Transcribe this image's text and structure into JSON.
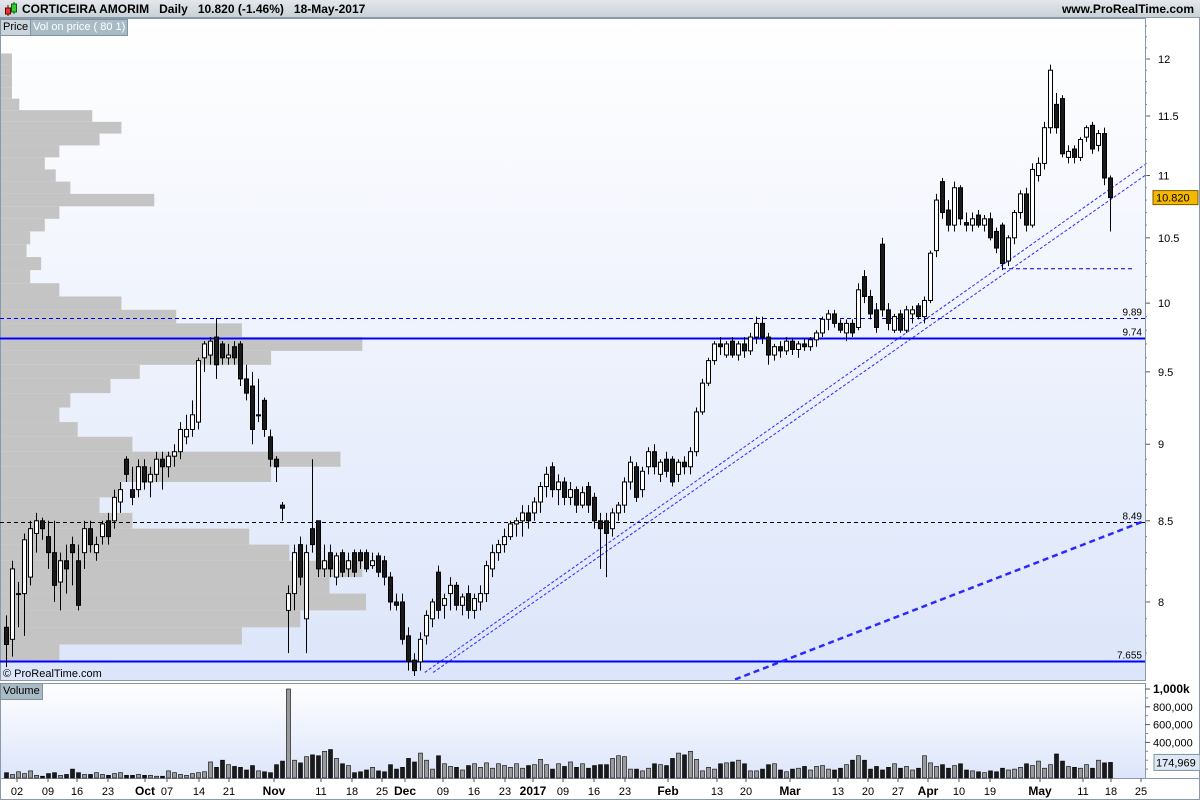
{
  "header": {
    "symbol": "CORTICEIRA AMORIM",
    "period": "Daily",
    "last": "10.820 (-1.46%)",
    "date": "18-May-2017",
    "site": "www.ProRealTime.com"
  },
  "tabs": {
    "price": "Price",
    "vol_on_price": "Vol on price ( 80 1)",
    "volume": "Volume"
  },
  "watermark": "© ProRealTime.com",
  "colors": {
    "up": "#ffffff",
    "down": "#1a1a1a",
    "lines": "#0000ff",
    "profile": "#c4c4c4",
    "last_price_box": "#f5b800",
    "panel_top": "#ffffff",
    "panel_bottom": "#dce5fa"
  },
  "chart_data": {
    "type": "candlestick",
    "y_scale": "log",
    "ylim": [
      7.54,
      12.35
    ],
    "price_ticks": [
      "12",
      "11.5",
      "11",
      "10.5",
      "10",
      "9.5",
      "9",
      "8.5",
      "8"
    ],
    "x_tick_labels": [
      "02",
      "09",
      "16",
      "23",
      "Oct",
      "07",
      "14",
      "21",
      "Nov",
      "11",
      "18",
      "25",
      "Dec",
      "09",
      "16",
      "23",
      "2017",
      "09",
      "16",
      "23",
      "Feb",
      "13",
      "20",
      "Mar",
      "13",
      "20",
      "27",
      "Apr",
      "10",
      "19",
      "May",
      "11",
      "18",
      "25"
    ],
    "x_tick_bold": [
      "Oct",
      "Nov",
      "Dec",
      "2017",
      "Feb",
      "Mar",
      "Apr",
      "May"
    ],
    "last_price": "10.820",
    "candles_ohlc": [
      [
        7.85,
        7.92,
        7.62,
        7.75
      ],
      [
        7.78,
        8.25,
        7.68,
        8.2
      ],
      [
        8.05,
        8.12,
        7.85,
        8.05
      ],
      [
        8.05,
        8.42,
        7.8,
        8.38
      ],
      [
        8.15,
        8.5,
        8.1,
        8.45
      ],
      [
        8.42,
        8.55,
        8.3,
        8.5
      ],
      [
        8.5,
        8.52,
        8.38,
        8.45
      ],
      [
        8.4,
        8.5,
        8.2,
        8.3
      ],
      [
        8.3,
        8.5,
        8.0,
        8.1
      ],
      [
        8.12,
        8.3,
        7.95,
        8.25
      ],
      [
        8.25,
        8.35,
        8.05,
        8.2
      ],
      [
        8.35,
        8.4,
        8.1,
        8.3
      ],
      [
        8.25,
        8.35,
        7.95,
        7.98
      ],
      [
        8.3,
        8.5,
        8.2,
        8.45
      ],
      [
        8.45,
        8.5,
        8.3,
        8.35
      ],
      [
        8.3,
        8.4,
        8.25,
        8.35
      ],
      [
        8.4,
        8.5,
        8.35,
        8.48
      ],
      [
        8.5,
        8.55,
        8.35,
        8.4
      ],
      [
        8.5,
        8.7,
        8.45,
        8.65
      ],
      [
        8.62,
        8.75,
        8.55,
        8.7
      ],
      [
        8.9,
        8.92,
        8.75,
        8.8
      ],
      [
        8.7,
        8.85,
        8.6,
        8.65
      ],
      [
        8.7,
        8.9,
        8.65,
        8.85
      ],
      [
        8.85,
        8.9,
        8.7,
        8.75
      ],
      [
        8.75,
        8.85,
        8.65,
        8.8
      ],
      [
        8.8,
        8.95,
        8.75,
        8.9
      ],
      [
        8.9,
        8.95,
        8.7,
        8.85
      ],
      [
        8.85,
        8.95,
        8.78,
        8.92
      ],
      [
        8.92,
        9.0,
        8.85,
        8.95
      ],
      [
        8.95,
        9.15,
        8.9,
        9.1
      ],
      [
        9.05,
        9.2,
        9.0,
        9.1
      ],
      [
        9.1,
        9.3,
        9.05,
        9.2
      ],
      [
        9.15,
        9.6,
        9.1,
        9.58
      ],
      [
        9.6,
        9.72,
        9.5,
        9.7
      ],
      [
        9.62,
        9.75,
        9.55,
        9.72
      ],
      [
        9.75,
        9.89,
        9.45,
        9.55
      ],
      [
        9.7,
        9.72,
        9.55,
        9.6
      ],
      [
        9.6,
        9.7,
        9.55,
        9.62
      ],
      [
        9.68,
        9.72,
        9.55,
        9.6
      ],
      [
        9.7,
        9.72,
        9.4,
        9.45
      ],
      [
        9.45,
        9.55,
        9.3,
        9.35
      ],
      [
        9.4,
        9.5,
        9.0,
        9.1
      ],
      [
        9.2,
        9.45,
        9.15,
        9.2
      ],
      [
        9.3,
        9.32,
        9.05,
        9.1
      ],
      [
        9.05,
        9.1,
        8.85,
        8.9
      ],
      [
        8.9,
        8.92,
        8.75,
        8.85
      ],
      [
        8.6,
        8.62,
        8.5,
        8.58
      ],
      [
        7.95,
        8.1,
        7.7,
        8.05
      ],
      [
        8.05,
        8.35,
        7.95,
        8.3
      ],
      [
        8.35,
        8.4,
        8.1,
        8.15
      ],
      [
        7.9,
        8.35,
        7.7,
        8.3
      ],
      [
        8.45,
        8.9,
        8.3,
        8.35
      ],
      [
        8.5,
        8.5,
        8.15,
        8.2
      ],
      [
        8.2,
        8.35,
        8.15,
        8.25
      ],
      [
        8.3,
        8.35,
        8.15,
        8.2
      ],
      [
        8.15,
        8.3,
        8.1,
        8.28
      ],
      [
        8.3,
        8.32,
        8.15,
        8.18
      ],
      [
        8.2,
        8.3,
        8.15,
        8.25
      ],
      [
        8.3,
        8.32,
        8.15,
        8.18
      ],
      [
        8.3,
        8.32,
        8.2,
        8.25
      ],
      [
        8.3,
        8.32,
        8.18,
        8.2
      ],
      [
        8.22,
        8.3,
        8.2,
        8.25
      ],
      [
        8.28,
        8.3,
        8.15,
        8.18
      ],
      [
        8.25,
        8.28,
        8.1,
        8.15
      ],
      [
        8.15,
        8.18,
        7.95,
        8.0
      ],
      [
        8.0,
        8.05,
        7.95,
        7.98
      ],
      [
        8.0,
        8.05,
        7.75,
        7.78
      ],
      [
        7.8,
        7.85,
        7.6,
        7.65
      ],
      [
        7.66,
        7.7,
        7.57,
        7.6
      ],
      [
        7.65,
        7.82,
        7.6,
        7.78
      ],
      [
        7.8,
        7.95,
        7.75,
        7.92
      ],
      [
        7.9,
        8.02,
        7.85,
        8.0
      ],
      [
        8.18,
        8.22,
        7.9,
        7.95
      ],
      [
        7.98,
        8.05,
        7.9,
        8.02
      ],
      [
        8.05,
        8.15,
        7.95,
        8.1
      ],
      [
        8.1,
        8.12,
        7.95,
        7.98
      ],
      [
        7.98,
        8.05,
        7.92,
        8.03
      ],
      [
        8.05,
        8.1,
        7.9,
        7.95
      ],
      [
        7.95,
        8.05,
        7.9,
        8.02
      ],
      [
        8.0,
        8.1,
        7.95,
        8.05
      ],
      [
        8.05,
        8.25,
        8.0,
        8.22
      ],
      [
        8.2,
        8.35,
        8.15,
        8.3
      ],
      [
        8.3,
        8.38,
        8.25,
        8.35
      ],
      [
        8.35,
        8.45,
        8.3,
        8.4
      ],
      [
        8.4,
        8.5,
        8.38,
        8.48
      ],
      [
        8.48,
        8.52,
        8.4,
        8.5
      ],
      [
        8.5,
        8.6,
        8.4,
        8.55
      ],
      [
        8.55,
        8.6,
        8.45,
        8.5
      ],
      [
        8.55,
        8.65,
        8.5,
        8.62
      ],
      [
        8.62,
        8.75,
        8.55,
        8.72
      ],
      [
        8.72,
        8.85,
        8.65,
        8.8
      ],
      [
        8.85,
        8.88,
        8.65,
        8.7
      ],
      [
        8.7,
        8.8,
        8.6,
        8.75
      ],
      [
        8.75,
        8.78,
        8.6,
        8.65
      ],
      [
        8.65,
        8.75,
        8.6,
        8.7
      ],
      [
        8.7,
        8.72,
        8.55,
        8.6
      ],
      [
        8.6,
        8.72,
        8.58,
        8.68
      ],
      [
        8.72,
        8.75,
        8.55,
        8.6
      ],
      [
        8.65,
        8.68,
        8.45,
        8.5
      ],
      [
        8.5,
        8.55,
        8.2,
        8.45
      ],
      [
        8.5,
        8.55,
        8.15,
        8.42
      ],
      [
        8.45,
        8.58,
        8.4,
        8.55
      ],
      [
        8.55,
        8.62,
        8.5,
        8.6
      ],
      [
        8.6,
        8.78,
        8.55,
        8.75
      ],
      [
        8.75,
        8.92,
        8.7,
        8.88
      ],
      [
        8.85,
        8.88,
        8.62,
        8.65
      ],
      [
        8.7,
        8.85,
        8.65,
        8.82
      ],
      [
        8.85,
        8.98,
        8.8,
        8.95
      ],
      [
        8.95,
        9.0,
        8.8,
        8.85
      ],
      [
        8.8,
        8.9,
        8.75,
        8.88
      ],
      [
        8.9,
        8.95,
        8.78,
        8.82
      ],
      [
        8.9,
        8.92,
        8.72,
        8.75
      ],
      [
        8.8,
        8.9,
        8.75,
        8.88
      ],
      [
        8.88,
        8.92,
        8.8,
        8.85
      ],
      [
        8.85,
        8.98,
        8.8,
        8.95
      ],
      [
        8.95,
        9.25,
        8.92,
        9.22
      ],
      [
        9.22,
        9.45,
        9.2,
        9.42
      ],
      [
        9.42,
        9.6,
        9.4,
        9.58
      ],
      [
        9.58,
        9.72,
        9.55,
        9.7
      ],
      [
        9.7,
        9.75,
        9.62,
        9.68
      ],
      [
        9.62,
        9.72,
        9.6,
        9.7
      ],
      [
        9.72,
        9.75,
        9.6,
        9.62
      ],
      [
        9.62,
        9.72,
        9.58,
        9.7
      ],
      [
        9.7,
        9.75,
        9.6,
        9.65
      ],
      [
        9.65,
        9.78,
        9.62,
        9.75
      ],
      [
        9.75,
        9.9,
        9.7,
        9.85
      ],
      [
        9.85,
        9.9,
        9.7,
        9.75
      ],
      [
        9.75,
        9.78,
        9.55,
        9.62
      ],
      [
        9.62,
        9.7,
        9.58,
        9.68
      ],
      [
        9.68,
        9.72,
        9.6,
        9.65
      ],
      [
        9.65,
        9.75,
        9.62,
        9.72
      ],
      [
        9.72,
        9.74,
        9.62,
        9.66
      ],
      [
        9.66,
        9.72,
        9.6,
        9.7
      ],
      [
        9.7,
        9.74,
        9.65,
        9.68
      ],
      [
        9.68,
        9.75,
        9.65,
        9.73
      ],
      [
        9.73,
        9.8,
        9.68,
        9.78
      ],
      [
        9.78,
        9.9,
        9.75,
        9.88
      ],
      [
        9.88,
        9.95,
        9.8,
        9.92
      ],
      [
        9.92,
        9.95,
        9.82,
        9.85
      ],
      [
        9.85,
        9.88,
        9.78,
        9.8
      ],
      [
        9.78,
        9.88,
        9.72,
        9.85
      ],
      [
        9.85,
        9.88,
        9.75,
        9.78
      ],
      [
        9.82,
        10.15,
        9.8,
        10.1
      ],
      [
        10.2,
        10.25,
        10.0,
        10.05
      ],
      [
        10.05,
        10.1,
        9.88,
        9.92
      ],
      [
        9.95,
        10.0,
        9.78,
        9.82
      ],
      [
        10.45,
        10.5,
        9.9,
        9.95
      ],
      [
        9.95,
        10.0,
        9.8,
        9.85
      ],
      [
        9.8,
        9.92,
        9.78,
        9.9
      ],
      [
        9.92,
        9.95,
        9.78,
        9.8
      ],
      [
        9.8,
        9.98,
        9.78,
        9.95
      ],
      [
        9.92,
        9.98,
        9.85,
        9.95
      ],
      [
        9.98,
        10.0,
        9.88,
        9.9
      ],
      [
        9.9,
        10.05,
        9.85,
        10.02
      ],
      [
        10.02,
        10.4,
        10.0,
        10.38
      ],
      [
        10.4,
        10.85,
        10.35,
        10.8
      ],
      [
        10.95,
        10.98,
        10.65,
        10.7
      ],
      [
        10.72,
        10.8,
        10.55,
        10.6
      ],
      [
        10.6,
        10.95,
        10.55,
        10.9
      ],
      [
        10.9,
        10.92,
        10.6,
        10.65
      ],
      [
        10.62,
        10.7,
        10.55,
        10.6
      ],
      [
        10.6,
        10.7,
        10.55,
        10.65
      ],
      [
        10.68,
        10.72,
        10.58,
        10.6
      ],
      [
        10.6,
        10.68,
        10.55,
        10.65
      ],
      [
        10.65,
        10.7,
        10.48,
        10.5
      ],
      [
        10.55,
        10.58,
        10.38,
        10.42
      ],
      [
        10.6,
        10.62,
        10.25,
        10.3
      ],
      [
        10.32,
        10.52,
        10.28,
        10.5
      ],
      [
        10.5,
        10.72,
        10.45,
        10.7
      ],
      [
        10.7,
        10.88,
        10.65,
        10.85
      ],
      [
        10.85,
        10.9,
        10.55,
        10.6
      ],
      [
        10.6,
        11.1,
        10.58,
        11.05
      ],
      [
        11.0,
        11.15,
        10.95,
        11.1
      ],
      [
        11.1,
        11.45,
        11.05,
        11.4
      ],
      [
        11.4,
        11.95,
        11.35,
        11.9
      ],
      [
        11.6,
        11.7,
        11.35,
        11.4
      ],
      [
        11.65,
        11.68,
        11.15,
        11.18
      ],
      [
        11.15,
        11.25,
        11.1,
        11.2
      ],
      [
        11.22,
        11.25,
        11.1,
        11.15
      ],
      [
        11.15,
        11.32,
        11.12,
        11.3
      ],
      [
        11.32,
        11.42,
        11.28,
        11.4
      ],
      [
        11.42,
        11.45,
        11.18,
        11.22
      ],
      [
        11.25,
        11.38,
        11.2,
        11.35
      ],
      [
        11.35,
        11.4,
        10.92,
        10.98
      ],
      [
        10.98,
        11.0,
        10.55,
        10.82
      ]
    ],
    "volume_k": [
      60,
      40,
      70,
      50,
      80,
      30,
      20,
      50,
      60,
      30,
      40,
      100,
      60,
      40,
      40,
      60,
      40,
      30,
      50,
      60,
      30,
      30,
      40,
      30,
      30,
      20,
      20,
      80,
      60,
      40,
      30,
      50,
      60,
      70,
      180,
      120,
      200,
      150,
      130,
      120,
      90,
      140,
      80,
      70,
      60,
      150,
      190,
      1000,
      200,
      170,
      240,
      260,
      250,
      300,
      320,
      220,
      160,
      140,
      60,
      70,
      90,
      120,
      80,
      70,
      150,
      100,
      120,
      220,
      180,
      280,
      200,
      100,
      250,
      160,
      130,
      120,
      90,
      140,
      160,
      120,
      170,
      110,
      160,
      140,
      120,
      160,
      110,
      140,
      150,
      210,
      150,
      100,
      160,
      130,
      180,
      120,
      160,
      110,
      140,
      150,
      150,
      220,
      250,
      240,
      100,
      100,
      80,
      110,
      160,
      150,
      140,
      220,
      280,
      260,
      300,
      210,
      80,
      120,
      100,
      160,
      170,
      180,
      200,
      160,
      80,
      80,
      100,
      150,
      160,
      90,
      70,
      100,
      110,
      130,
      90,
      130,
      140,
      100,
      90,
      110,
      150,
      200,
      250,
      200,
      100,
      130,
      90,
      120,
      160,
      110,
      130,
      90,
      110,
      250,
      170,
      130,
      150,
      110,
      140,
      160,
      90,
      80,
      70,
      60,
      80,
      70,
      110,
      90,
      100,
      120,
      160,
      140,
      190,
      110,
      150,
      270,
      190,
      130,
      120,
      110,
      150,
      110,
      200,
      170,
      174.969
    ],
    "volume_ticks": [
      "1,000k",
      "800,000",
      "600,000",
      "400,000"
    ],
    "last_volume": "174,969",
    "volume_on_price": {
      "prices": [
        12.0,
        11.9,
        11.8,
        11.7,
        11.6,
        11.5,
        11.4,
        11.3,
        11.2,
        11.1,
        11.0,
        10.9,
        10.8,
        10.7,
        10.6,
        10.5,
        10.4,
        10.3,
        10.2,
        10.1,
        10.0,
        9.9,
        9.8,
        9.7,
        9.6,
        9.5,
        9.4,
        9.3,
        9.2,
        9.1,
        9.0,
        8.9,
        8.8,
        8.7,
        8.6,
        8.5,
        8.4,
        8.3,
        8.2,
        8.1,
        8.0,
        7.9,
        7.8,
        7.7
      ],
      "relative_volume_pct": [
        3,
        3,
        3,
        3,
        5,
        25,
        33,
        27,
        16,
        12,
        15,
        19,
        42,
        16,
        12,
        8,
        7,
        11,
        8,
        16,
        33,
        48,
        66,
        99,
        74,
        38,
        30,
        19,
        16,
        21,
        36,
        93,
        74,
        33,
        27,
        36,
        68,
        79,
        99,
        90,
        100,
        82,
        66,
        16
      ]
    },
    "horizontal_lines": [
      {
        "price": 9.89,
        "label": "9.89",
        "style": "dashed",
        "color": "#0000ff"
      },
      {
        "price": 9.74,
        "label": "9.74",
        "style": "solid",
        "color": "#0000ff"
      },
      {
        "price": 8.49,
        "label": "8.49",
        "style": "dashed",
        "color": "#000000"
      },
      {
        "price": 7.655,
        "label": "7.655",
        "style": "solid",
        "color": "#0000ff"
      }
    ],
    "segment_lines": [
      {
        "from": [
          166,
          10.26
        ],
        "to": [
          188,
          10.26
        ],
        "style": "dashed"
      }
    ],
    "trend_lines": [
      {
        "from": [
          69.8,
          7.59
        ],
        "to": [
          189.8,
          11.09
        ],
        "style": "dotted"
      },
      {
        "from": [
          71.2,
          7.59
        ],
        "to": [
          190.7,
          11.03
        ],
        "style": "dotted"
      },
      {
        "from": [
          121.5,
          7.55
        ],
        "to": [
          189.8,
          8.5
        ],
        "style": "thick-dashed"
      }
    ]
  }
}
